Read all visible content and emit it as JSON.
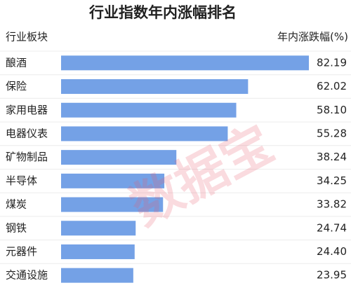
{
  "chart_data": {
    "type": "bar",
    "orientation": "horizontal",
    "title": "行业指数年内涨幅排名",
    "category_header": "行业板块",
    "value_header": "年内涨跌幅(%)",
    "watermark": "数据宝",
    "categories": [
      "酿酒",
      "保险",
      "家用电器",
      "电器仪表",
      "矿物制品",
      "半导体",
      "煤炭",
      "钢铁",
      "元器件",
      "交通设施"
    ],
    "values": [
      82.19,
      62.02,
      58.1,
      55.28,
      38.24,
      34.25,
      33.82,
      24.74,
      24.4,
      23.95
    ],
    "value_labels": [
      "82.19",
      "62.02",
      "58.10",
      "55.28",
      "38.24",
      "34.25",
      "33.82",
      "24.74",
      "24.40",
      "23.95"
    ],
    "color": "#74a1e6"
  }
}
